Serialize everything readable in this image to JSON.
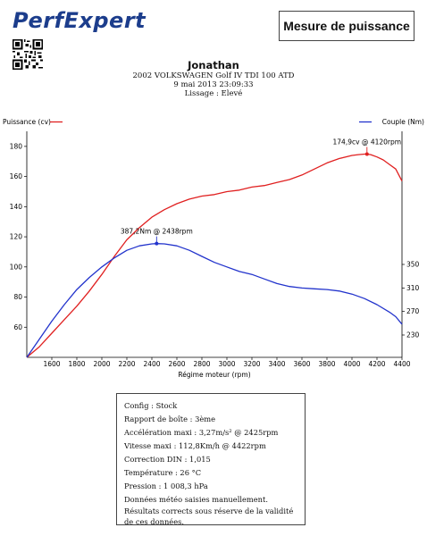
{
  "header": {
    "logo_text": "PerfExpert",
    "report_title": "Mesure de puissance",
    "customer": "Jonathan",
    "vehicle": "2002 VOLKSWAGEN Golf IV TDI 100 ATD",
    "date": "9 mai 2013 23:09:33",
    "smoothing": "Lissage : Elevé"
  },
  "chart_data": {
    "type": "line",
    "xlabel": "Régime moteur (rpm)",
    "xlim": [
      1400,
      4400
    ],
    "x_ticks": [
      1600,
      1800,
      2000,
      2200,
      2400,
      2600,
      2800,
      3000,
      3200,
      3400,
      3600,
      3800,
      4000,
      4200,
      4400
    ],
    "y_left": {
      "label": "Puissance (cv)",
      "lim": [
        40,
        190
      ],
      "ticks": [
        60,
        80,
        100,
        120,
        140,
        160,
        180
      ]
    },
    "y_right": {
      "label": "Couple (Nm)",
      "ticks": [
        230,
        270,
        310,
        350
      ]
    },
    "series": [
      {
        "name": "Puissance (cv)",
        "color": "#e02020",
        "x": [
          1400,
          1500,
          1600,
          1700,
          1800,
          1900,
          2000,
          2100,
          2200,
          2300,
          2400,
          2500,
          2600,
          2700,
          2800,
          2900,
          3000,
          3100,
          3200,
          3300,
          3400,
          3500,
          3600,
          3700,
          3800,
          3900,
          4000,
          4050,
          4100,
          4120,
          4150,
          4200,
          4250,
          4300,
          4350,
          4400
        ],
        "y": [
          40,
          47,
          56,
          65,
          74,
          84,
          95,
          107,
          118,
          126,
          133,
          138,
          142,
          145,
          147,
          148,
          150,
          151,
          153,
          154,
          156,
          158,
          161,
          165,
          169,
          172,
          174,
          174.5,
          174.9,
          174.9,
          174.5,
          173,
          171,
          168,
          165,
          157
        ]
      },
      {
        "name": "Couple (Nm)",
        "color": "#2233cc",
        "x": [
          1400,
          1500,
          1600,
          1700,
          1800,
          1900,
          2000,
          2100,
          2200,
          2300,
          2400,
          2438,
          2500,
          2600,
          2700,
          2800,
          2900,
          3000,
          3100,
          3200,
          3300,
          3400,
          3500,
          3600,
          3700,
          3800,
          3900,
          4000,
          4100,
          4200,
          4300,
          4350,
          4400
        ],
        "y": [
          40,
          52,
          64,
          75,
          85,
          93,
          100,
          106,
          111,
          114,
          115.3,
          115.5,
          115.3,
          114,
          111,
          107,
          103,
          100,
          97,
          95,
          92,
          89,
          87,
          86,
          85.5,
          85,
          84,
          82,
          79,
          75,
          70,
          67,
          62
        ]
      }
    ],
    "annotations": [
      {
        "text": "174,9cv @ 4120rpm",
        "series": "Puissance (cv)",
        "x": 4120,
        "y": 174.9
      },
      {
        "text": "387,2Nm @ 2438rpm",
        "series": "Couple (Nm)",
        "x": 2438,
        "y": 115.5
      }
    ],
    "grid": false,
    "legend": "top-left and top-right"
  },
  "config": {
    "lines": [
      "Config : Stock",
      "Rapport de boîte : 3ème",
      "Accélération maxi : 3,27m/s² @ 2425rpm",
      "Vitesse maxi : 112,8Km/h @ 4422rpm",
      "Correction DIN : 1,015",
      "Température : 26 °C",
      "Pression : 1 008,3 hPa"
    ],
    "note": "Données météo saisies manuellement. Résultats corrects sous réserve de la validité de ces données."
  }
}
